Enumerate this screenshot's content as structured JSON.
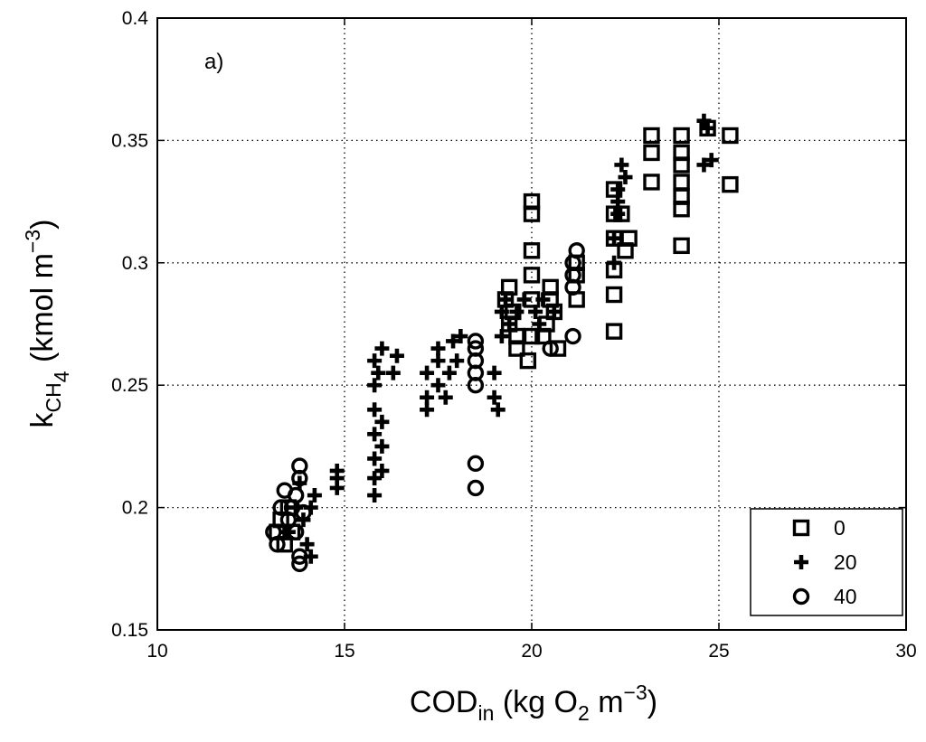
{
  "chart_data": {
    "type": "scatter",
    "panel_label": "a)",
    "xlabel": {
      "main": "COD",
      "sub": "in",
      "rest_before": " (kg O",
      "rest_sub": "2",
      "rest_after": " m",
      "sup": "−3",
      "close": ")"
    },
    "ylabel": {
      "main": "k",
      "sub": "CH",
      "subsub": "4",
      "rest": " (kmol m",
      "sup": "−3",
      "close": ")"
    },
    "xlim": [
      10,
      30
    ],
    "ylim": [
      0.15,
      0.4
    ],
    "xticks": [
      10,
      15,
      20,
      25,
      30
    ],
    "yticks": [
      0.15,
      0.2,
      0.25,
      0.3,
      0.35,
      0.4
    ],
    "xtick_labels": [
      "10",
      "15",
      "20",
      "25",
      "30"
    ],
    "ytick_labels": [
      "0.15",
      "0.2",
      "0.25",
      "0.3",
      "0.35",
      "0.4"
    ],
    "grid": true,
    "legend_position": "bottom-right",
    "series": [
      {
        "name": "0",
        "marker": "square",
        "points": [
          [
            13.2,
            0.19
          ],
          [
            13.3,
            0.195
          ],
          [
            13.5,
            0.2
          ],
          [
            13.6,
            0.19
          ],
          [
            13.4,
            0.185
          ],
          [
            19.3,
            0.285
          ],
          [
            19.4,
            0.29
          ],
          [
            19.5,
            0.28
          ],
          [
            19.6,
            0.27
          ],
          [
            19.4,
            0.275
          ],
          [
            19.6,
            0.265
          ],
          [
            19.9,
            0.26
          ],
          [
            20.0,
            0.27
          ],
          [
            20.0,
            0.285
          ],
          [
            20.0,
            0.295
          ],
          [
            20.0,
            0.305
          ],
          [
            20.0,
            0.32
          ],
          [
            20.0,
            0.325
          ],
          [
            20.3,
            0.27
          ],
          [
            20.4,
            0.275
          ],
          [
            20.5,
            0.285
          ],
          [
            20.6,
            0.28
          ],
          [
            20.7,
            0.265
          ],
          [
            20.5,
            0.29
          ],
          [
            21.2,
            0.285
          ],
          [
            21.2,
            0.295
          ],
          [
            21.2,
            0.3
          ],
          [
            22.2,
            0.272
          ],
          [
            22.2,
            0.287
          ],
          [
            22.2,
            0.297
          ],
          [
            22.2,
            0.31
          ],
          [
            22.2,
            0.32
          ],
          [
            22.2,
            0.33
          ],
          [
            22.5,
            0.305
          ],
          [
            22.6,
            0.31
          ],
          [
            22.4,
            0.32
          ],
          [
            23.2,
            0.333
          ],
          [
            23.2,
            0.345
          ],
          [
            23.2,
            0.352
          ],
          [
            24.0,
            0.307
          ],
          [
            24.0,
            0.322
          ],
          [
            24.0,
            0.333
          ],
          [
            24.0,
            0.34
          ],
          [
            24.0,
            0.345
          ],
          [
            24.0,
            0.352
          ],
          [
            24.0,
            0.327
          ],
          [
            24.7,
            0.355
          ],
          [
            25.3,
            0.332
          ],
          [
            25.3,
            0.352
          ]
        ]
      },
      {
        "name": "20",
        "marker": "plus",
        "points": [
          [
            13.5,
            0.19
          ],
          [
            13.7,
            0.2
          ],
          [
            13.9,
            0.195
          ],
          [
            14.0,
            0.185
          ],
          [
            14.1,
            0.2
          ],
          [
            14.2,
            0.205
          ],
          [
            14.1,
            0.18
          ],
          [
            13.8,
            0.21
          ],
          [
            14.8,
            0.208
          ],
          [
            14.8,
            0.212
          ],
          [
            14.8,
            0.215
          ],
          [
            15.8,
            0.205
          ],
          [
            15.8,
            0.212
          ],
          [
            15.8,
            0.22
          ],
          [
            15.8,
            0.23
          ],
          [
            15.8,
            0.24
          ],
          [
            15.8,
            0.25
          ],
          [
            15.8,
            0.26
          ],
          [
            15.9,
            0.255
          ],
          [
            16.0,
            0.265
          ],
          [
            16.0,
            0.225
          ],
          [
            16.0,
            0.235
          ],
          [
            16.0,
            0.215
          ],
          [
            16.3,
            0.255
          ],
          [
            16.4,
            0.262
          ],
          [
            17.2,
            0.24
          ],
          [
            17.2,
            0.245
          ],
          [
            17.2,
            0.255
          ],
          [
            17.5,
            0.25
          ],
          [
            17.5,
            0.26
          ],
          [
            17.5,
            0.265
          ],
          [
            17.7,
            0.245
          ],
          [
            17.8,
            0.255
          ],
          [
            17.9,
            0.268
          ],
          [
            18.0,
            0.26
          ],
          [
            18.1,
            0.27
          ],
          [
            19.0,
            0.245
          ],
          [
            19.1,
            0.24
          ],
          [
            19.0,
            0.255
          ],
          [
            19.2,
            0.27
          ],
          [
            19.2,
            0.28
          ],
          [
            19.3,
            0.285
          ],
          [
            19.4,
            0.275
          ],
          [
            19.6,
            0.28
          ],
          [
            19.8,
            0.285
          ],
          [
            20.1,
            0.28
          ],
          [
            20.2,
            0.275
          ],
          [
            20.3,
            0.285
          ],
          [
            20.6,
            0.28
          ],
          [
            22.2,
            0.3
          ],
          [
            22.2,
            0.31
          ],
          [
            22.3,
            0.32
          ],
          [
            22.3,
            0.33
          ],
          [
            22.4,
            0.34
          ],
          [
            22.5,
            0.335
          ],
          [
            22.3,
            0.325
          ],
          [
            24.6,
            0.34
          ],
          [
            24.6,
            0.358
          ],
          [
            24.7,
            0.355
          ],
          [
            24.8,
            0.342
          ]
        ]
      },
      {
        "name": "40",
        "marker": "circle",
        "points": [
          [
            13.1,
            0.19
          ],
          [
            13.2,
            0.185
          ],
          [
            13.3,
            0.2
          ],
          [
            13.4,
            0.207
          ],
          [
            13.5,
            0.195
          ],
          [
            13.6,
            0.2
          ],
          [
            13.7,
            0.205
          ],
          [
            13.8,
            0.212
          ],
          [
            13.8,
            0.217
          ],
          [
            13.8,
            0.18
          ],
          [
            13.8,
            0.177
          ],
          [
            13.7,
            0.19
          ],
          [
            13.9,
            0.198
          ],
          [
            18.5,
            0.25
          ],
          [
            18.5,
            0.255
          ],
          [
            18.5,
            0.26
          ],
          [
            18.5,
            0.265
          ],
          [
            18.5,
            0.268
          ],
          [
            18.5,
            0.218
          ],
          [
            18.5,
            0.208
          ],
          [
            20.5,
            0.265
          ],
          [
            21.1,
            0.27
          ],
          [
            21.1,
            0.29
          ],
          [
            21.1,
            0.3
          ],
          [
            21.2,
            0.305
          ],
          [
            21.1,
            0.295
          ]
        ]
      }
    ]
  }
}
